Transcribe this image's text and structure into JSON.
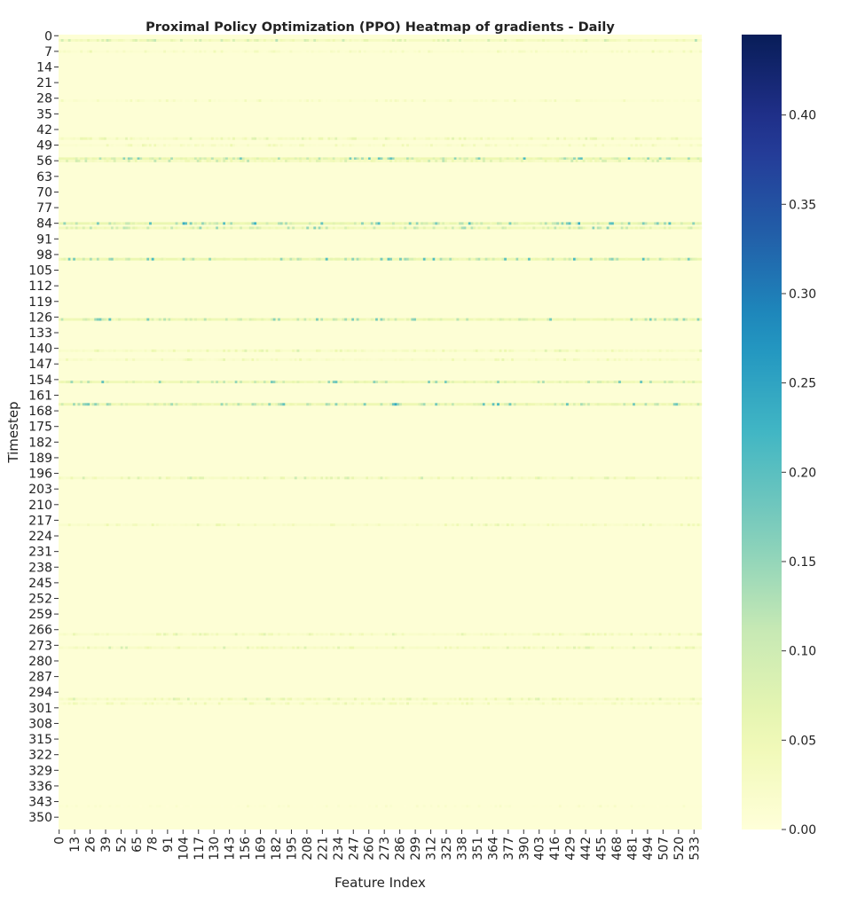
{
  "chart_data": {
    "type": "heatmap",
    "title": "Proximal Policy Optimization (PPO) Heatmap of gradients - Daily",
    "xlabel": "Feature Index",
    "ylabel": "Timestep",
    "n_rows": 356,
    "n_cols": 540,
    "x_ticks": [
      0,
      13,
      26,
      39,
      52,
      65,
      78,
      91,
      104,
      117,
      130,
      143,
      156,
      169,
      182,
      195,
      208,
      221,
      234,
      247,
      260,
      273,
      286,
      299,
      312,
      325,
      338,
      351,
      364,
      377,
      390,
      403,
      416,
      429,
      442,
      455,
      468,
      481,
      494,
      507,
      520,
      533
    ],
    "y_ticks": [
      0,
      7,
      14,
      21,
      28,
      35,
      42,
      49,
      56,
      63,
      70,
      77,
      84,
      91,
      98,
      105,
      112,
      119,
      126,
      133,
      140,
      147,
      154,
      161,
      168,
      175,
      182,
      189,
      196,
      203,
      210,
      217,
      224,
      231,
      238,
      245,
      252,
      259,
      266,
      273,
      280,
      287,
      294,
      301,
      308,
      315,
      322,
      329,
      336,
      343,
      350
    ],
    "colorbar": {
      "colormap": "YlGnBu",
      "range": [
        0.0,
        0.445
      ],
      "ticks": [
        0.0,
        0.05,
        0.1,
        0.15,
        0.2,
        0.25,
        0.3,
        0.35,
        0.4
      ],
      "tick_labels": [
        "0.00",
        "0.05",
        "0.10",
        "0.15",
        "0.20",
        "0.25",
        "0.30",
        "0.35",
        "0.40"
      ]
    },
    "row_peak_gradients": [
      {
        "timestep": 2,
        "value": 0.14
      },
      {
        "timestep": 7,
        "value": 0.06
      },
      {
        "timestep": 29,
        "value": 0.05
      },
      {
        "timestep": 46,
        "value": 0.09
      },
      {
        "timestep": 49,
        "value": 0.06
      },
      {
        "timestep": 55,
        "value": 0.25
      },
      {
        "timestep": 56,
        "value": 0.13
      },
      {
        "timestep": 84,
        "value": 0.27
      },
      {
        "timestep": 86,
        "value": 0.18
      },
      {
        "timestep": 100,
        "value": 0.26
      },
      {
        "timestep": 127,
        "value": 0.22
      },
      {
        "timestep": 141,
        "value": 0.09
      },
      {
        "timestep": 145,
        "value": 0.07
      },
      {
        "timestep": 155,
        "value": 0.21
      },
      {
        "timestep": 165,
        "value": 0.24
      },
      {
        "timestep": 198,
        "value": 0.11
      },
      {
        "timestep": 219,
        "value": 0.08
      },
      {
        "timestep": 268,
        "value": 0.09
      },
      {
        "timestep": 274,
        "value": 0.1
      },
      {
        "timestep": 297,
        "value": 0.1
      },
      {
        "timestep": 299,
        "value": 0.07
      },
      {
        "timestep": 345,
        "value": 0.03
      }
    ]
  }
}
